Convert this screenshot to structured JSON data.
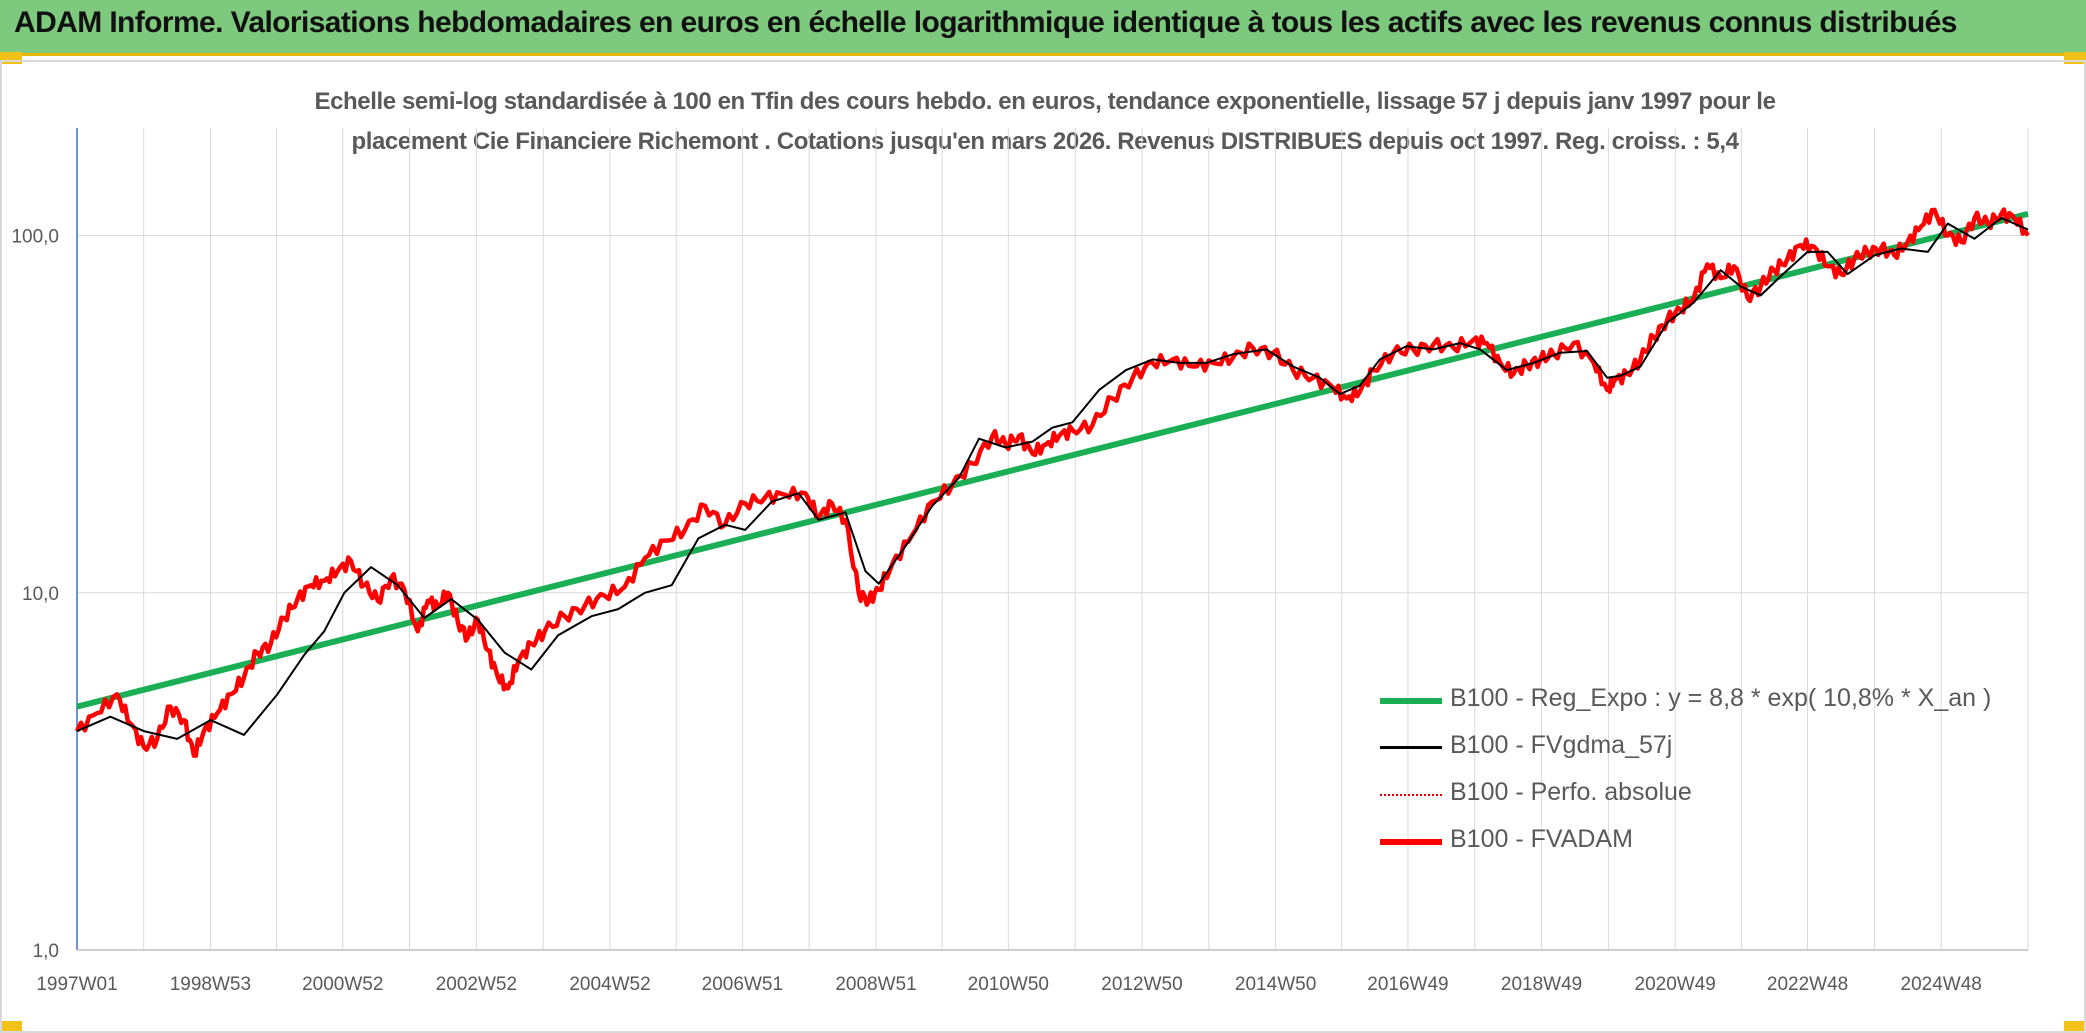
{
  "banner": {
    "title": "ADAM Informe. Valorisations hebdomadaires en euros en échelle logarithmique identique à tous les actifs avec les revenus connus distribués"
  },
  "colors": {
    "banner_bg": "#7dc97d",
    "accent_corner": "#f2c21b",
    "regression": "#1aaf54",
    "smoothed": "#000000",
    "absolute": "#e00000",
    "fvadam": "#ff0000"
  },
  "chart_data": {
    "type": "line",
    "title_line1": "Echelle semi-log standardisée à 100 en Tfin des cours hebdo. en euros, tendance exponentielle, lissage 57 j depuis janv 1997 pour le",
    "title_line2": "placement Cie Financiere Richemont . Cotations jusqu'en mars 2026. Revenus DISTRIBUES depuis oct 1997. Reg. croiss. : 5,4",
    "y_scale": "log",
    "ylim": [
      1,
      200
    ],
    "y_ticks": [
      "1,0",
      "10,0",
      "100,0"
    ],
    "x_range": [
      "1997W01",
      "2026W12"
    ],
    "x_ticks": [
      "1997W01",
      "1998W53",
      "2000W52",
      "2002W52",
      "2004W52",
      "2006W51",
      "2008W51",
      "2010W50",
      "2012W50",
      "2014W50",
      "2016W49",
      "2018W49",
      "2020W49",
      "2022W48",
      "2024W48"
    ],
    "grid": true,
    "legend_position": "bottom-right",
    "series": [
      {
        "name": "B100 - Reg_Expo : y = 8,8 * exp( 10,8% *  X_an )",
        "style": "line-thick",
        "color": "#1aaf54",
        "x": [
          1997.0,
          2026.2
        ],
        "y": [
          4.8,
          115
        ]
      },
      {
        "name": "B100 - FVgdma_57j",
        "style": "line-thin",
        "color": "#000000",
        "x": [
          1997.0,
          1997.5,
          1998.0,
          1998.5,
          1999.0,
          1999.5,
          2000.0,
          2000.4,
          2000.7,
          2001.0,
          2001.4,
          2001.8,
          2002.2,
          2002.6,
          2003.0,
          2003.4,
          2003.8,
          2004.2,
          2004.7,
          2005.1,
          2005.5,
          2005.9,
          2006.3,
          2006.7,
          2007.0,
          2007.4,
          2007.8,
          2008.1,
          2008.5,
          2008.8,
          2009.0,
          2009.4,
          2009.8,
          2010.2,
          2010.5,
          2010.9,
          2011.3,
          2011.6,
          2011.9,
          2012.3,
          2012.7,
          2013.1,
          2013.5,
          2013.9,
          2014.3,
          2014.8,
          2015.2,
          2015.6,
          2015.9,
          2016.2,
          2016.5,
          2016.9,
          2017.3,
          2017.7,
          2018.0,
          2018.4,
          2018.8,
          2019.2,
          2019.6,
          2019.9,
          2020.1,
          2020.4,
          2020.8,
          2021.2,
          2021.6,
          2021.9,
          2022.2,
          2022.5,
          2022.9,
          2023.2,
          2023.5,
          2023.9,
          2024.3,
          2024.7,
          2025.0,
          2025.4,
          2025.8,
          2026.2
        ],
        "y": [
          4.1,
          4.5,
          4.1,
          3.9,
          4.4,
          4.0,
          5.2,
          6.7,
          7.8,
          10.0,
          11.8,
          10.5,
          8.5,
          9.6,
          8.4,
          6.8,
          6.1,
          7.6,
          8.6,
          9.0,
          10.0,
          10.5,
          14.2,
          15.5,
          15.0,
          18.0,
          19.0,
          16.0,
          16.8,
          11.5,
          10.6,
          13.5,
          17.5,
          21.0,
          27.0,
          25.5,
          26.5,
          29.0,
          30.0,
          37.0,
          42.0,
          45.0,
          44.0,
          44.0,
          46.5,
          48.0,
          43.0,
          40.0,
          36.0,
          38.0,
          45.0,
          49.0,
          48.0,
          50.0,
          48.0,
          42.0,
          44.0,
          47.0,
          47.5,
          40.0,
          40.5,
          43.0,
          57.0,
          65.0,
          80.0,
          72.0,
          68.0,
          77.0,
          90.0,
          90.0,
          78.0,
          88.0,
          92.0,
          90.0,
          108.0,
          98.0,
          112.0,
          104.0
        ]
      },
      {
        "name": "B100 - Perfo. absolue",
        "style": "dotted",
        "color": "#e00000"
      },
      {
        "name": "B100 - FVADAM",
        "style": "line-thick",
        "color": "#ff0000",
        "x": [
          1997.0,
          1997.3,
          1997.6,
          1997.8,
          1998.0,
          1998.2,
          1998.4,
          1998.6,
          1998.75,
          1998.9,
          1999.1,
          1999.3,
          1999.5,
          1999.7,
          1999.9,
          2000.1,
          2000.3,
          2000.5,
          2000.7,
          2000.9,
          2001.1,
          2001.3,
          2001.5,
          2001.7,
          2001.9,
          2002.1,
          2002.25,
          2002.4,
          2002.55,
          2002.7,
          2002.85,
          2003.0,
          2003.15,
          2003.3,
          2003.45,
          2003.6,
          2003.8,
          2004.0,
          2004.3,
          2004.6,
          2004.9,
          2005.2,
          2005.5,
          2005.8,
          2006.1,
          2006.4,
          2006.7,
          2007.0,
          2007.3,
          2007.6,
          2007.9,
          2008.1,
          2008.3,
          2008.5,
          2008.7,
          2008.85,
          2009.0,
          2009.2,
          2009.5,
          2009.8,
          2010.1,
          2010.4,
          2010.7,
          2010.9,
          2011.1,
          2011.3,
          2011.5,
          2011.7,
          2011.9,
          2012.2,
          2012.5,
          2012.8,
          2013.1,
          2013.4,
          2013.7,
          2014.0,
          2014.3,
          2014.6,
          2014.9,
          2015.2,
          2015.5,
          2015.8,
          2016.0,
          2016.2,
          2016.4,
          2016.7,
          2017.0,
          2017.3,
          2017.6,
          2017.9,
          2018.1,
          2018.3,
          2018.5,
          2018.7,
          2018.9,
          2019.1,
          2019.4,
          2019.7,
          2019.9,
          2020.0,
          2020.2,
          2020.4,
          2020.6,
          2020.8,
          2021.0,
          2021.2,
          2021.4,
          2021.6,
          2021.8,
          2022.0,
          2022.2,
          2022.4,
          2022.6,
          2022.8,
          2023.0,
          2023.2,
          2023.4,
          2023.6,
          2023.8,
          2024.0,
          2024.2,
          2024.4,
          2024.6,
          2024.8,
          2025.0,
          2025.2,
          2025.4,
          2025.6,
          2025.8,
          2026.0,
          2026.2
        ],
        "y": [
          4.1,
          4.6,
          5.2,
          4.3,
          3.7,
          3.9,
          4.8,
          4.4,
          3.5,
          4.1,
          4.6,
          5.2,
          5.8,
          6.8,
          7.2,
          8.5,
          9.6,
          10.5,
          10.8,
          11.5,
          12.3,
          10.5,
          9.5,
          11.0,
          10.2,
          7.8,
          9.5,
          9.2,
          10.0,
          8.3,
          7.5,
          8.4,
          6.9,
          5.8,
          5.4,
          6.4,
          7.2,
          7.8,
          8.6,
          9.2,
          9.8,
          10.4,
          12.5,
          14.0,
          15.0,
          17.5,
          15.5,
          17.8,
          18.5,
          18.8,
          19.0,
          16.2,
          17.8,
          16.0,
          10.0,
          9.5,
          10.2,
          12.0,
          14.5,
          18.0,
          20.0,
          23.0,
          27.5,
          26.0,
          27.5,
          24.5,
          26.0,
          27.5,
          28.5,
          29.5,
          35.0,
          40.0,
          44.0,
          45.0,
          43.0,
          44.0,
          45.5,
          48.5,
          47.0,
          42.0,
          40.0,
          37.5,
          35.0,
          36.5,
          42.0,
          47.0,
          48.0,
          49.5,
          48.5,
          51.0,
          50.0,
          44.0,
          41.0,
          43.5,
          45.0,
          46.5,
          50.0,
          44.0,
          37.0,
          39.0,
          41.0,
          45.0,
          52.0,
          58.0,
          62.0,
          67.0,
          83.0,
          76.0,
          82.0,
          67.0,
          72.0,
          80.0,
          86.0,
          94.0,
          93.0,
          82.0,
          78.0,
          86.0,
          90.0,
          92.0,
          88.0,
          96.0,
          106.0,
          118.0,
          100.0,
          96.0,
          112.0,
          108.0,
          115.0,
          112.0,
          100.0
        ]
      }
    ]
  }
}
